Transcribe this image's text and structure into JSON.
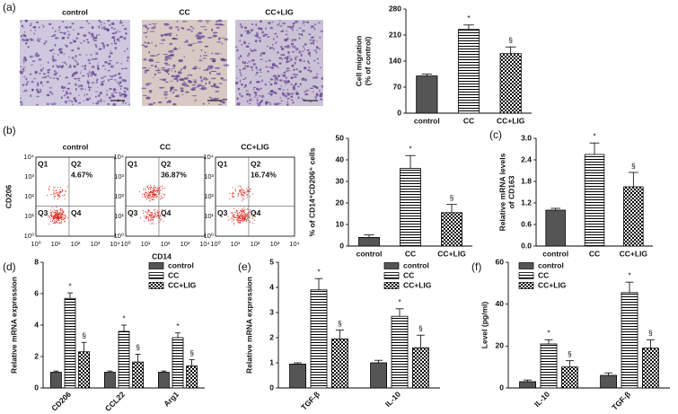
{
  "images": {
    "panel": "(a)",
    "labels": [
      "control",
      "CC",
      "CC+LIG"
    ]
  },
  "flow": {
    "panel": "(b)",
    "labels": [
      "control",
      "CC",
      "CC+LIG"
    ],
    "quadrants": [
      "Q1",
      "Q2",
      "Q3",
      "Q4"
    ],
    "percentages": [
      "4.67%",
      "36.87%",
      "16.74%"
    ],
    "ylabel": "CD206",
    "xlabel": "CD14",
    "ticks": [
      "10⁰",
      "10¹",
      "10²",
      "10³",
      "10⁴"
    ]
  },
  "chart_data": [
    {
      "type": "bar",
      "ylabel": [
        "Cell migration",
        "(% of control)"
      ],
      "categories": [
        "control",
        "CC",
        "CC+LIG"
      ],
      "values": [
        100,
        225,
        160
      ],
      "errors": [
        5,
        12,
        18
      ],
      "sig": [
        null,
        "*",
        "§"
      ],
      "fills": [
        "solid",
        "hlines",
        "checker"
      ],
      "color": "#555555",
      "ylim": [
        0,
        280
      ],
      "yticks": [
        0,
        70,
        140,
        210,
        280
      ]
    },
    {
      "type": "bar",
      "ylabel": [
        "% of CD14⁺CD206⁺ cells"
      ],
      "categories": [
        "control",
        "CC",
        "CC+LIG"
      ],
      "values": [
        4,
        36,
        15.5
      ],
      "errors": [
        1.2,
        6,
        3.8
      ],
      "sig": [
        null,
        "*",
        "§"
      ],
      "fills": [
        "solid",
        "hlines",
        "checker"
      ],
      "color": "#555555",
      "ylim": [
        0,
        50
      ],
      "yticks": [
        0,
        10,
        20,
        30,
        40,
        50
      ]
    },
    {
      "type": "bar",
      "panel": "(c)",
      "ylabel": [
        "Relative mRNA levels",
        "of CD163"
      ],
      "categories": [
        "control",
        "CC",
        "CC+LIG"
      ],
      "values": [
        1.0,
        2.55,
        1.65
      ],
      "errors": [
        0.05,
        0.32,
        0.4
      ],
      "sig": [
        null,
        "*",
        "§"
      ],
      "fills": [
        "solid",
        "hlines",
        "checker"
      ],
      "color": "#555555",
      "ylim": [
        0,
        3
      ],
      "yticks": [
        {
          "value": 0,
          "label": "0.0"
        },
        0.6,
        1.2,
        1.8,
        2.4,
        {
          "value": 3,
          "label": "3.0"
        }
      ]
    },
    {
      "type": "grouped_bar",
      "panel": "(d)",
      "ylabel": [
        "Relative mRNA expression"
      ],
      "categories": [
        "CD206",
        "CCL22",
        "Arg1"
      ],
      "series": [
        {
          "name": "control",
          "fill": "solid",
          "values": [
            1,
            1,
            1
          ],
          "errors": [
            0.08,
            0.08,
            0.08
          ]
        },
        {
          "name": "CC",
          "fill": "hlines",
          "values": [
            5.7,
            3.6,
            3.2
          ],
          "errors": [
            0.35,
            0.4,
            0.3
          ],
          "sig": [
            "*",
            "*",
            "*"
          ]
        },
        {
          "name": "CC+LIG",
          "fill": "checker",
          "values": [
            2.3,
            1.65,
            1.4
          ],
          "errors": [
            0.6,
            0.5,
            0.4
          ],
          "sig": [
            "§",
            "§",
            "§"
          ]
        }
      ],
      "color": "#555555",
      "legend": "upper right",
      "ylim": [
        0,
        8
      ],
      "yticks": [
        0,
        2,
        4,
        6,
        8
      ]
    },
    {
      "type": "grouped_bar",
      "panel": "(e)",
      "ylabel": [
        "Relative mRNA expression"
      ],
      "categories": [
        "TGF-β",
        "IL-10"
      ],
      "series": [
        {
          "name": "control",
          "fill": "solid",
          "values": [
            0.95,
            1.0
          ],
          "errors": [
            0.05,
            0.1
          ]
        },
        {
          "name": "CC",
          "fill": "hlines",
          "values": [
            3.9,
            2.85
          ],
          "errors": [
            0.45,
            0.3
          ],
          "sig": [
            "*",
            "*"
          ]
        },
        {
          "name": "CC+LIG",
          "fill": "checker",
          "values": [
            1.95,
            1.6
          ],
          "errors": [
            0.35,
            0.5
          ],
          "sig": [
            "§",
            "§"
          ]
        }
      ],
      "color": "#555555",
      "legend": "upper right",
      "ylim": [
        0,
        5
      ],
      "yticks": [
        0,
        1,
        2,
        3,
        4,
        5
      ]
    },
    {
      "type": "grouped_bar",
      "panel": "(f)",
      "ylabel": [
        "Level (pg/ml)"
      ],
      "categories": [
        "IL-10",
        "TGF-β"
      ],
      "series": [
        {
          "name": "control",
          "fill": "solid",
          "values": [
            3,
            6
          ],
          "errors": [
            0.8,
            1.2
          ]
        },
        {
          "name": "CC",
          "fill": "hlines",
          "values": [
            21,
            45.5
          ],
          "errors": [
            2,
            5
          ],
          "sig": [
            "*",
            "*"
          ]
        },
        {
          "name": "CC+LIG",
          "fill": "checker",
          "values": [
            10,
            19
          ],
          "errors": [
            3,
            4
          ],
          "sig": [
            "§",
            "§"
          ]
        }
      ],
      "color": "#555555",
      "legend": "upper left",
      "ylim": [
        0,
        60
      ],
      "yticks": [
        0,
        20,
        40,
        60
      ]
    }
  ]
}
